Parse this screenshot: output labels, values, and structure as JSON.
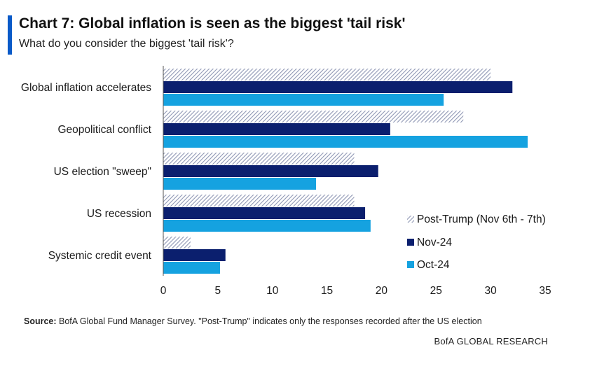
{
  "header": {
    "title": "Chart 7: Global inflation is seen as the biggest 'tail risk'",
    "subtitle": "What do you consider the biggest 'tail risk'?"
  },
  "footer": {
    "source_label": "Source:",
    "source_text": " BofA Global Fund Manager Survey. \"Post-Trump\" indicates only the responses recorded after the US election",
    "brand": "BofA GLOBAL RESEARCH"
  },
  "colors": {
    "accent": "#0a5ac8",
    "post_trump": "#8f97b4",
    "nov24": "#0b1f6e",
    "oct24": "#15a2e0"
  },
  "chart_data": {
    "type": "bar",
    "orientation": "horizontal",
    "categories": [
      "Global inflation accelerates",
      "Geopolitical conflict",
      "US election \"sweep\"",
      "US recession",
      "Systemic credit event"
    ],
    "series": [
      {
        "name": "Post-Trump (Nov 6th - 7th)",
        "pattern": "hatched",
        "values": [
          30,
          27.5,
          17.5,
          17.5,
          2.5
        ]
      },
      {
        "name": "Nov-24",
        "values": [
          32,
          20.8,
          19.7,
          18.5,
          5.7
        ]
      },
      {
        "name": "Oct-24",
        "values": [
          25.7,
          33.4,
          14,
          19,
          5.2
        ]
      }
    ],
    "xlim": [
      0,
      35
    ],
    "xticks": [
      0,
      5,
      10,
      15,
      20,
      25,
      30,
      35
    ],
    "grid": false,
    "legend_position": "bottom-right"
  }
}
